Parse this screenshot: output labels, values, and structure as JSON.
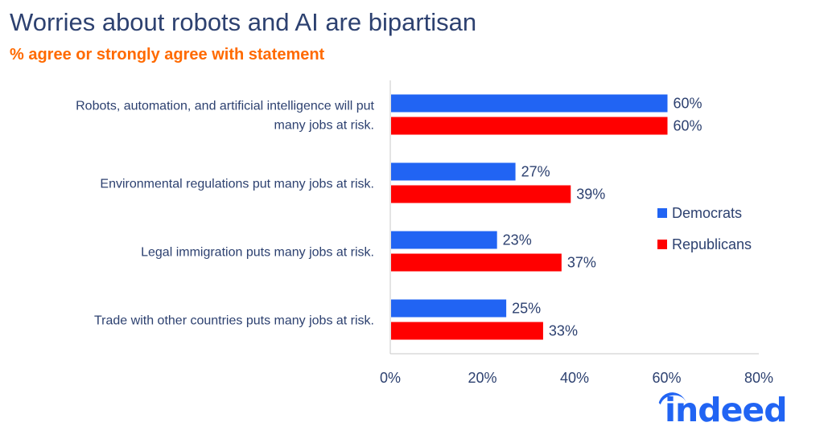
{
  "title": "Worries about robots and AI are bipartisan",
  "subtitle": "% agree or strongly agree with statement",
  "logo_text": "indeed",
  "chart_data": {
    "type": "bar",
    "orientation": "horizontal",
    "categories": [
      [
        "Robots, automation, and artificial intelligence will put",
        "many jobs at risk."
      ],
      [
        "Environmental regulations put many jobs at risk."
      ],
      [
        "Legal immigration puts many jobs at risk."
      ],
      [
        "Trade with other countries puts many jobs at risk."
      ]
    ],
    "series": [
      {
        "name": "Democrats",
        "color": "#2164f3",
        "values": [
          60,
          27,
          23,
          25
        ]
      },
      {
        "name": "Republicans",
        "color": "#ff0000",
        "values": [
          60,
          39,
          37,
          33
        ]
      }
    ],
    "xlim": [
      0,
      80
    ],
    "xticks": [
      "0%",
      "20%",
      "40%",
      "60%",
      "80%"
    ],
    "value_suffix": "%",
    "legend": "right",
    "grid": false
  }
}
